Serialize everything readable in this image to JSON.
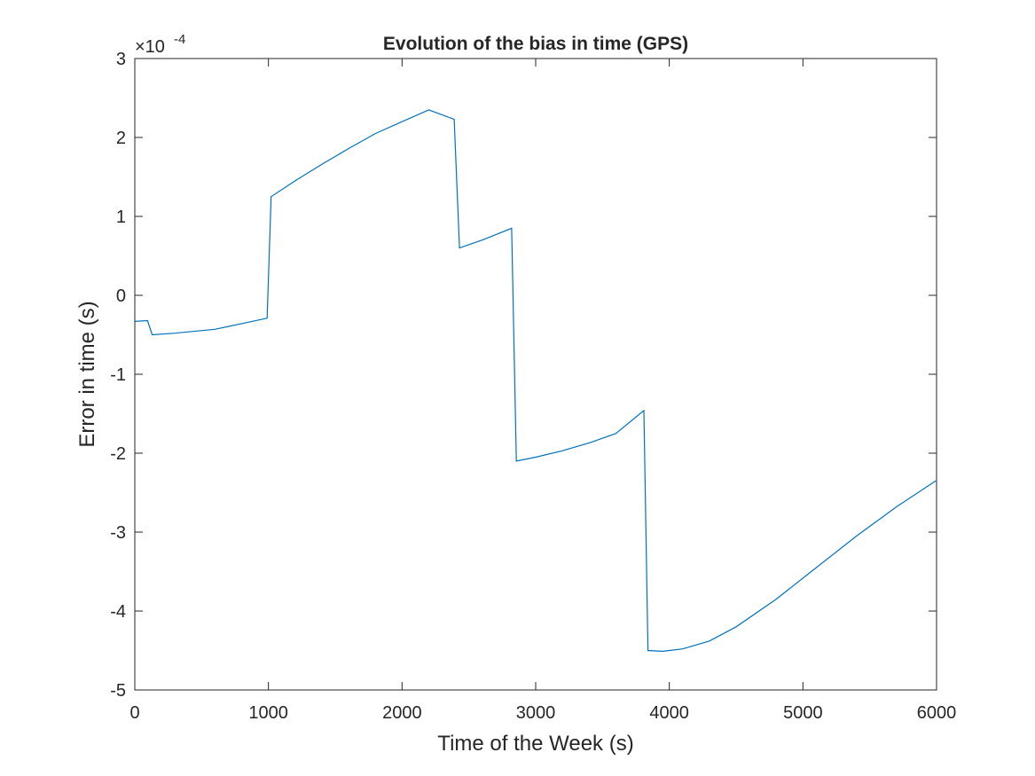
{
  "chart_data": {
    "type": "line",
    "title": "Evolution of the bias in time (GPS)",
    "xlabel": "Time of the Week (s)",
    "ylabel": "Error in time (s)",
    "y_exponent_base": "×10",
    "y_exponent_power": "-4",
    "xlim": [
      0,
      6000
    ],
    "ylim": [
      -5,
      3
    ],
    "xticks": [
      0,
      1000,
      2000,
      3000,
      4000,
      5000,
      6000
    ],
    "yticks": [
      -5,
      -4,
      -3,
      -2,
      -1,
      0,
      1,
      2,
      3
    ],
    "grid": false,
    "line_color": "#0072BD",
    "series": [
      {
        "x": [
          0,
          95,
          130,
          300,
          600,
          990,
          1020,
          1200,
          1400,
          1600,
          1800,
          2000,
          2200,
          2390,
          2430,
          2600,
          2820,
          2855,
          3000,
          3200,
          3400,
          3600,
          3810,
          3840,
          3950,
          4100,
          4300,
          4500,
          4800,
          5100,
          5400,
          5700,
          5995
        ],
        "values": [
          -0.33,
          -0.32,
          -0.5,
          -0.48,
          -0.43,
          -0.29,
          1.25,
          1.45,
          1.66,
          1.86,
          2.05,
          2.2,
          2.35,
          2.23,
          0.6,
          0.7,
          0.85,
          -2.1,
          -2.05,
          -1.97,
          -1.87,
          -1.75,
          -1.46,
          -4.5,
          -4.51,
          -4.48,
          -4.38,
          -4.2,
          -3.85,
          -3.45,
          -3.05,
          -2.68,
          -2.35
        ]
      }
    ]
  }
}
